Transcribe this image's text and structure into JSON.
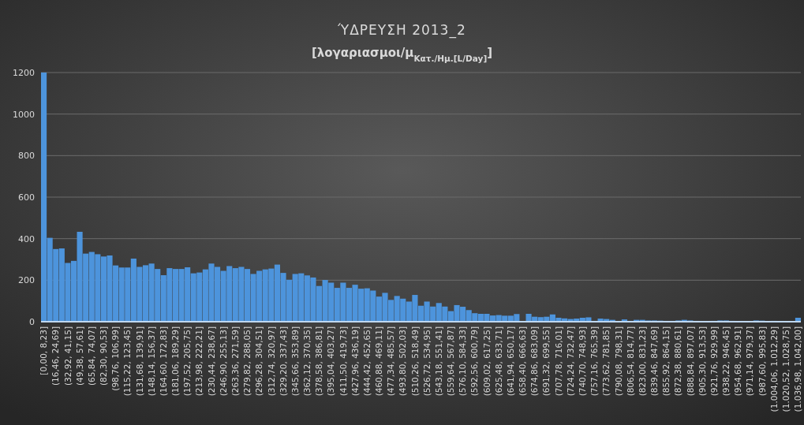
{
  "chart_data": {
    "type": "bar",
    "title": "ΎΔΡΕΥΣΗ 2013_2",
    "subtitle": "[λογαριασμοι/μ$_{Κατ./Ημ.[L/Day]}$]",
    "categories": [
      "[0,00, 8,23]",
      null,
      "(16,46, 24,69]",
      null,
      "(32,92, 41,15]",
      null,
      "(49,38, 57,61]",
      null,
      "(65,84, 74,07]",
      null,
      "(82,30, 90,53]",
      null,
      "(98,76, 106,99]",
      null,
      "(115,22, 123,45]",
      null,
      "(131,68, 139,91]",
      null,
      "(148,14, 156,37]",
      null,
      "(164,60, 172,83]",
      null,
      "(181,06, 189,29]",
      null,
      "(197,52, 205,75]",
      null,
      "(213,98, 222,21]",
      null,
      "(230,44, 238,67]",
      null,
      "(246,90, 255,13]",
      null,
      "(263,36, 271,59]",
      null,
      "(279,82, 288,05]",
      null,
      "(296,28, 304,51]",
      null,
      "(312,74, 320,97]",
      null,
      "(329,20, 337,43]",
      null,
      "(345,66, 353,89]",
      null,
      "(362,12, 370,35]",
      null,
      "(378,58, 386,81]",
      null,
      "(395,04, 403,27]",
      null,
      "(411,50, 419,73]",
      null,
      "(427,96, 436,19]",
      null,
      "(444,42, 452,65]",
      null,
      "(460,88, 469,11]",
      null,
      "(477,34, 485,57]",
      null,
      "(493,80, 502,03]",
      null,
      "(510,26, 518,49]",
      null,
      "(526,72, 534,95]",
      null,
      "(543,18, 551,41]",
      null,
      "(559,64, 567,87]",
      null,
      "(576,10, 584,33]",
      null,
      "(592,56, 600,79]",
      null,
      "(609,02, 617,25]",
      null,
      "(625,48, 633,71]",
      null,
      "(641,94, 650,17]",
      null,
      "(658,40, 666,63]",
      null,
      "(674,86, 683,09]",
      null,
      "(691,32, 699,55]",
      null,
      "(707,78, 716,01]",
      null,
      "(724,24, 732,47]",
      null,
      "(740,70, 748,93]",
      null,
      "(757,16, 765,39]",
      null,
      "(773,62, 781,85]",
      null,
      "(790,08, 798,31]",
      null,
      "(806,54, 814,77]",
      null,
      "(823,00, 831,23]",
      null,
      "(839,46, 847,69]",
      null,
      "(855,92, 864,15]",
      null,
      "(872,38, 880,61]",
      null,
      "(888,84, 897,07]",
      null,
      "(905,30, 913,53]",
      null,
      "(921,76, 929,99]",
      null,
      "(938,22, 946,45]",
      null,
      "(954,68, 962,91]",
      null,
      "(971,14, 979,37]",
      null,
      "(987,60, 995,83]",
      null,
      "(1.004,06, 1.012,29]",
      null,
      "(1.020,52, 1.028,75]",
      null,
      "(1.036,98, 1.042,00]"
    ],
    "values": [
      1200,
      404,
      350,
      353,
      283,
      293,
      433,
      328,
      336,
      325,
      314,
      319,
      271,
      261,
      261,
      304,
      264,
      272,
      280,
      254,
      224,
      258,
      254,
      254,
      262,
      233,
      237,
      252,
      280,
      264,
      245,
      268,
      258,
      264,
      254,
      230,
      245,
      252,
      256,
      275,
      235,
      202,
      230,
      233,
      223,
      213,
      172,
      201,
      188,
      163,
      188,
      163,
      178,
      159,
      161,
      150,
      121,
      139,
      105,
      124,
      111,
      97,
      129,
      77,
      97,
      73,
      90,
      73,
      51,
      80,
      72,
      56,
      41,
      38,
      38,
      30,
      32,
      29,
      29,
      37,
      0,
      38,
      24,
      22,
      24,
      35,
      19,
      16,
      13,
      15,
      19,
      21,
      4,
      15,
      13,
      9,
      3,
      11,
      4,
      9,
      9,
      6,
      6,
      5,
      4,
      4,
      6,
      9,
      6,
      4,
      3,
      3,
      4,
      6,
      6,
      4,
      3,
      3,
      3,
      6,
      5,
      3,
      4,
      3,
      1,
      1,
      19
    ],
    "color": "#4d94dc",
    "ylim": [
      0,
      1200
    ],
    "yticks": [
      0,
      200,
      400,
      600,
      800,
      1000,
      1200
    ],
    "grid": "y"
  }
}
